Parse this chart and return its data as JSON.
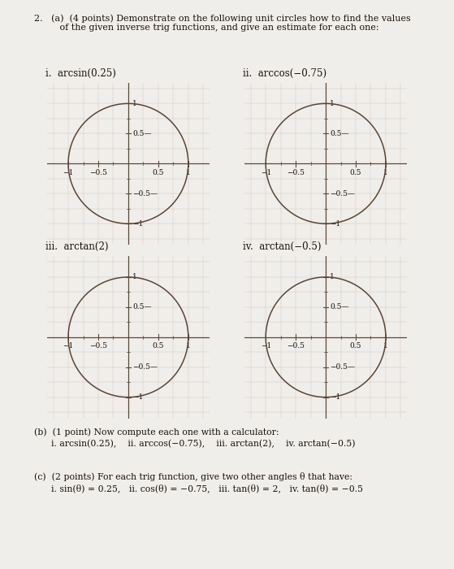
{
  "title_line1": "2.   (a)  (4 points) Demonstrate on the following unit circles how to find the values",
  "title_line2": "         of the given inverse trig functions, and give an estimate for each one:",
  "subplot_labels": [
    "i.  arcsin(0.25)",
    "ii.  arccos(−0.75)",
    "iii.  arctan(2)",
    "iv.  arctan(−0.5)"
  ],
  "part_b_line1": "(b)  (1 point) Now compute each one with a calculator:",
  "part_b_line2": "      i. arcsin(0.25),    ii. arccos(−0.75),    iii. arctan(2),    iv. arctan(−0.5)",
  "part_c_line1": "(c)  (2 points) For each trig function, give two other angles θ that have:",
  "part_c_line2": "      i. sin(θ) = 0.25,   ii. cos(θ) = −0.75,   iii. tan(θ) = 2,   iv. tan(θ) = −0.5",
  "background_color": "#f0eeeb",
  "circle_color": "#5a4535",
  "axis_color": "#5a4535",
  "grid_color": "#d4c8ba",
  "tick_color": "#5a4535",
  "text_color": "#1a1008",
  "axis_lim": [
    -1.35,
    1.35
  ],
  "ticks": [
    -1.0,
    -0.5,
    0.5,
    1.0
  ],
  "font_size_label": 8.5,
  "font_size_tick": 6.5,
  "font_size_header": 8.0,
  "font_size_body": 7.8
}
